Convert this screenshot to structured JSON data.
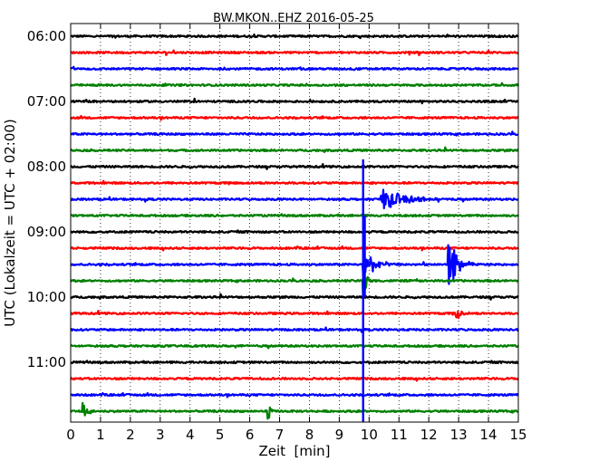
{
  "chart_data": {
    "type": "line",
    "title": "BW.MKON..EHZ 2016-05-25",
    "xlabel": "Zeit  [min]",
    "ylabel": "UTC (Lokalzeit = UTC + 02:00)",
    "xlim": [
      0,
      15
    ],
    "x_ticks": [
      0,
      1,
      2,
      3,
      4,
      5,
      6,
      7,
      8,
      9,
      10,
      11,
      12,
      13,
      14,
      15
    ],
    "x_tick_labels": [
      "0",
      "1",
      "2",
      "3",
      "4",
      "5",
      "6",
      "7",
      "8",
      "9",
      "10",
      "11",
      "12",
      "13",
      "14",
      "15"
    ],
    "y_tick_labels": [
      "06:00",
      "07:00",
      "08:00",
      "09:00",
      "10:00",
      "11:00"
    ],
    "y_tick_hours": [
      6,
      7,
      8,
      9,
      10,
      11
    ],
    "trace_interval_minutes": 15,
    "trace_starts": [
      "06:00",
      "06:15",
      "06:30",
      "06:45",
      "07:00",
      "07:15",
      "07:30",
      "07:45",
      "08:00",
      "08:15",
      "08:30",
      "08:45",
      "09:00",
      "09:15",
      "09:30",
      "09:45",
      "10:00",
      "10:15",
      "10:30",
      "10:45",
      "11:00",
      "11:15",
      "11:30",
      "11:45"
    ],
    "series_colors": [
      "#000000",
      "#ff0000",
      "#0000ff",
      "#008000"
    ],
    "grid": {
      "vertical": true,
      "style": "dotted"
    },
    "events": [
      {
        "trace": "08:30",
        "start_min": 10.4,
        "peak": 0.55,
        "duration_min": 2.5,
        "note": "coda"
      },
      {
        "trace": "09:30",
        "start_min": 9.8,
        "peak": 0.9,
        "duration_min": 1.2
      },
      {
        "trace": "09:30",
        "start_min": 12.65,
        "peak": 1.6,
        "duration_min": 0.9
      },
      {
        "trace": "09:45",
        "start_min": 9.8,
        "peak": 1.5,
        "duration_min": 0.3,
        "note": "clipped spike across traces 08:00–11:30"
      },
      {
        "trace": "10:15",
        "start_min": 12.9,
        "peak": 0.4,
        "duration_min": 0.5
      },
      {
        "trace": "11:45",
        "start_min": 0.4,
        "peak": 0.5,
        "duration_min": 0.5
      },
      {
        "trace": "11:45",
        "start_min": 6.6,
        "peak": 0.8,
        "duration_min": 0.2
      }
    ]
  }
}
